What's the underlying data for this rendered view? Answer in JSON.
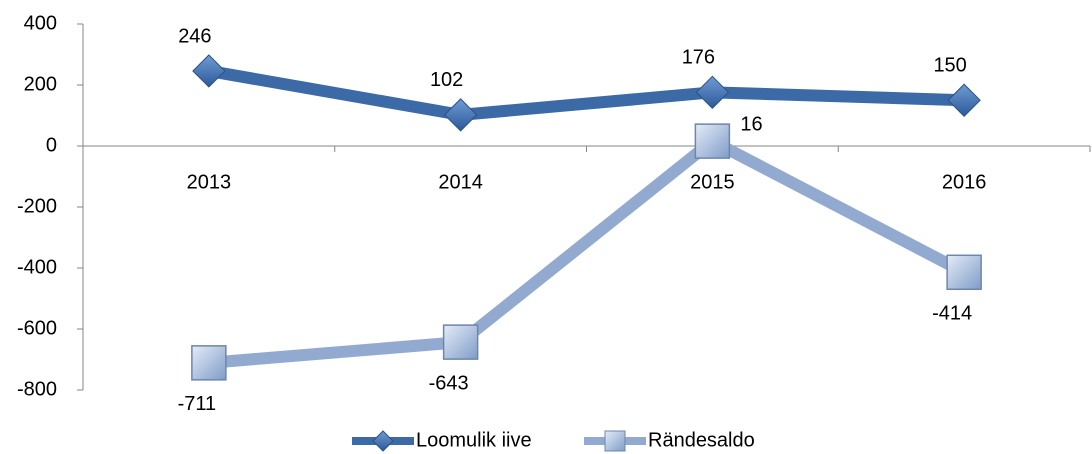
{
  "chart_data": {
    "type": "line",
    "categories": [
      "2013",
      "2014",
      "2015",
      "2016"
    ],
    "series": [
      {
        "name": "Loomulik iive",
        "color": "#3c6aa6",
        "marker": "diamond",
        "values": [
          246,
          102,
          176,
          150
        ]
      },
      {
        "name": "Rändesaldo",
        "color": "#93aad0",
        "marker": "square",
        "values": [
          -711,
          -643,
          16,
          -414
        ]
      }
    ],
    "ylim": [
      -800,
      400
    ],
    "yticks": [
      -800,
      -600,
      -400,
      -200,
      0,
      200,
      400
    ],
    "grid": false,
    "legend": "bottom"
  }
}
